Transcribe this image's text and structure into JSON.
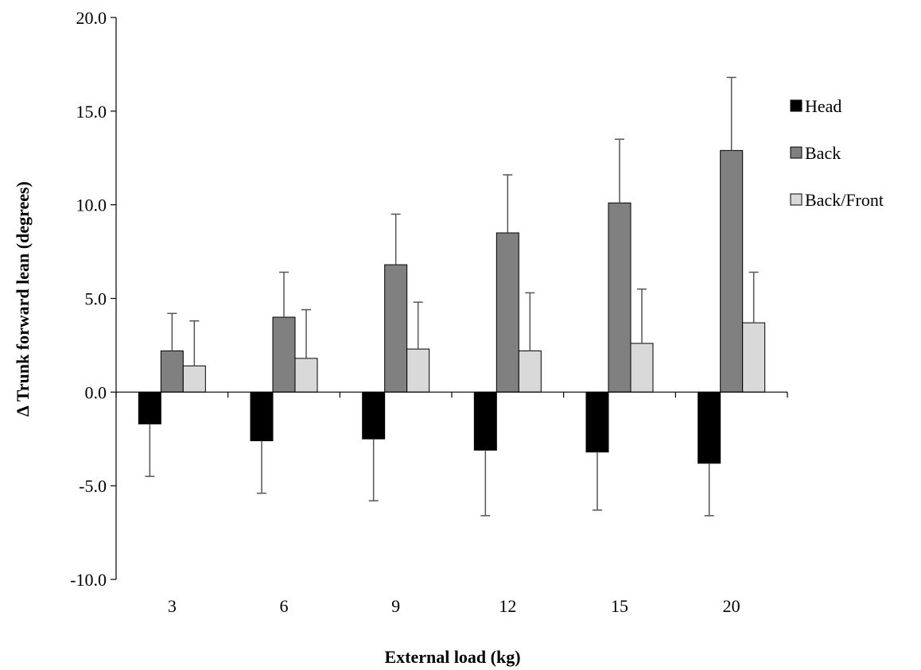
{
  "chart_data": {
    "type": "bar",
    "title": "",
    "xlabel": "External load (kg)",
    "ylabel": "∆ Trunk forward lean (degrees)",
    "categories": [
      "3",
      "6",
      "9",
      "12",
      "15",
      "20"
    ],
    "ylim": [
      -10,
      20
    ],
    "yticks": [
      -10,
      -5,
      0,
      5,
      10,
      15,
      20
    ],
    "ytick_labels": [
      "-10.0",
      "-5.0",
      "0.0",
      "5.0",
      "10.0",
      "15.0",
      "20.0"
    ],
    "grid": false,
    "legend_position": "right",
    "series": [
      {
        "name": "Head",
        "color": "#000000",
        "values": [
          -1.7,
          -2.6,
          -2.5,
          -3.1,
          -3.2,
          -3.8
        ],
        "errors": [
          2.8,
          2.8,
          3.3,
          3.5,
          3.1,
          2.8
        ]
      },
      {
        "name": "Back",
        "color": "#808080",
        "values": [
          2.2,
          4.0,
          6.8,
          8.5,
          10.1,
          12.9
        ],
        "errors": [
          2.0,
          2.4,
          2.7,
          3.1,
          3.4,
          3.9
        ]
      },
      {
        "name": "Back/Front",
        "color": "#d9d9d9",
        "values": [
          1.4,
          1.8,
          2.3,
          2.2,
          2.6,
          3.7
        ],
        "errors": [
          2.4,
          2.6,
          2.5,
          3.1,
          2.9,
          2.7
        ]
      }
    ]
  }
}
